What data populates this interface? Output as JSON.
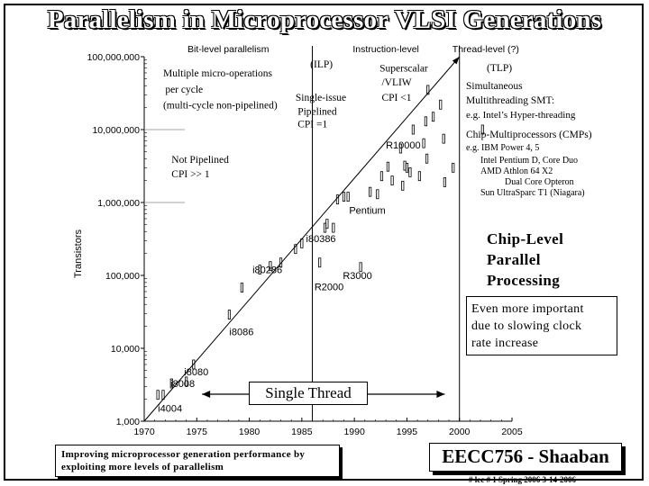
{
  "slide": {
    "title": "Parallelism in Microprocessor VLSI Generations"
  },
  "chart_data": {
    "type": "scatter",
    "title": "",
    "xlabel": "",
    "ylabel": "Transistors",
    "x_scale": "linear",
    "y_scale": "log",
    "xlim": [
      1970,
      2005
    ],
    "ylim": [
      1000,
      100000000
    ],
    "x_ticks": [
      "1970",
      "1975",
      "1980",
      "1985",
      "1990",
      "1995",
      "2000",
      "2005"
    ],
    "y_ticks": [
      "1,000",
      "10,000",
      "100,000",
      "1,000,000",
      "10,000,000",
      "100,000,000"
    ],
    "eras": [
      "Bit-level parallelism",
      "Instruction-level",
      "Thread-level (?)"
    ],
    "era_boundaries_year": [
      1986,
      2000
    ],
    "trend_line": {
      "x": [
        1970,
        2000
      ],
      "y": [
        1000,
        100000000
      ]
    },
    "points": [
      {
        "x": 1971.3,
        "y": 2300
      },
      {
        "x": 1971.8,
        "y": 2300
      },
      {
        "x": 1972.6,
        "y": 3300
      },
      {
        "x": 1974.0,
        "y": 3500
      },
      {
        "x": 1974.7,
        "y": 6000
      },
      {
        "x": 1978.1,
        "y": 29000
      },
      {
        "x": 1979.3,
        "y": 68000
      },
      {
        "x": 1981.0,
        "y": 120000
      },
      {
        "x": 1982.0,
        "y": 134000
      },
      {
        "x": 1983.0,
        "y": 150000
      },
      {
        "x": 1984.4,
        "y": 230000
      },
      {
        "x": 1985.0,
        "y": 275000
      },
      {
        "x": 1986.7,
        "y": 150000
      },
      {
        "x": 1987.2,
        "y": 450000
      },
      {
        "x": 1987.4,
        "y": 510000
      },
      {
        "x": 1988.0,
        "y": 450000
      },
      {
        "x": 1988.4,
        "y": 1100000
      },
      {
        "x": 1989.0,
        "y": 1200000
      },
      {
        "x": 1989.4,
        "y": 1200000
      },
      {
        "x": 1990.6,
        "y": 130000
      },
      {
        "x": 1991.5,
        "y": 1400000
      },
      {
        "x": 1992.2,
        "y": 1300000
      },
      {
        "x": 1992.6,
        "y": 2300000
      },
      {
        "x": 1993.2,
        "y": 3100000
      },
      {
        "x": 1993.6,
        "y": 2000000
      },
      {
        "x": 1994.4,
        "y": 5500000
      },
      {
        "x": 1994.6,
        "y": 1700000
      },
      {
        "x": 1994.8,
        "y": 3200000
      },
      {
        "x": 1995.0,
        "y": 3000000
      },
      {
        "x": 1995.3,
        "y": 2600000
      },
      {
        "x": 1995.6,
        "y": 10000000
      },
      {
        "x": 1996.2,
        "y": 2300000
      },
      {
        "x": 1996.6,
        "y": 6500000
      },
      {
        "x": 1996.8,
        "y": 13000000
      },
      {
        "x": 1996.9,
        "y": 4000000
      },
      {
        "x": 1997.5,
        "y": 15000000
      },
      {
        "x": 1997.0,
        "y": 35000000
      },
      {
        "x": 1998.2,
        "y": 22000000
      },
      {
        "x": 1998.5,
        "y": 7500000
      },
      {
        "x": 1998.6,
        "y": 1900000
      },
      {
        "x": 1999.4,
        "y": 3000000
      },
      {
        "x": 2002.2,
        "y": 10000000
      }
    ],
    "chip_labels": [
      {
        "text": "i4004",
        "x": 1971.3,
        "y": 1500
      },
      {
        "text": "i8008",
        "x": 1972.5,
        "y": 3300
      },
      {
        "text": "i8080",
        "x": 1973.8,
        "y": 4800
      },
      {
        "text": "i8086",
        "x": 1978.1,
        "y": 17000
      },
      {
        "text": "i80286",
        "x": 1980.3,
        "y": 120000
      },
      {
        "text": "R2000",
        "x": 1986.2,
        "y": 70000
      },
      {
        "text": "i80386",
        "x": 1985.4,
        "y": 320000
      },
      {
        "text": "R3000",
        "x": 1988.9,
        "y": 100000
      },
      {
        "text": "Pentium",
        "x": 1989.5,
        "y": 780000
      },
      {
        "text": "R10000",
        "x": 1993.0,
        "y": 6200000
      }
    ],
    "annotations": [
      {
        "text": "Multiple micro-operations",
        "x": 1971.8,
        "y": 60000000
      },
      {
        "text": "per cycle",
        "x": 1972.0,
        "y": 36000000
      },
      {
        "text": "(multi-cycle non-pipelined)",
        "x": 1971.8,
        "y": 22000000
      },
      {
        "text": "(ILP)",
        "x": 1985.8,
        "y": 80000000
      },
      {
        "text": "Superscalar",
        "x": 1992.4,
        "y": 70000000
      },
      {
        "text": "/VLIW",
        "x": 1992.6,
        "y": 45000000
      },
      {
        "text": "CPI <1",
        "x": 1992.6,
        "y": 28000000
      },
      {
        "text": "Single-issue",
        "x": 1984.4,
        "y": 28000000
      },
      {
        "text": "Pipelined",
        "x": 1984.6,
        "y": 18000000
      },
      {
        "text": "CPI =1",
        "x": 1984.6,
        "y": 12000000
      },
      {
        "text": "Not Pipelined",
        "x": 1972.6,
        "y": 3900000
      },
      {
        "text": "CPI >> 1",
        "x": 1972.6,
        "y": 2500000
      }
    ],
    "tlp_notes": [
      "(TLP)",
      "Simultaneous",
      "Multithreading SMT:",
      "e.g. Intel’s Hyper-threading",
      "Chip-Multiprocessors (CMPs)",
      "e.g. IBM Power 4, 5",
      "Intel Pentium D, Core Duo",
      "AMD Athlon 64 X2",
      "Dual Core Opteron",
      "Sun UltraSparc T1 (Niagara)"
    ]
  },
  "callouts": {
    "chip_level": [
      "Chip-Level",
      "Parallel",
      "Processing"
    ],
    "clock": [
      "Even more important",
      "due to slowing clock",
      "rate increase"
    ],
    "single_thread": "Single Thread"
  },
  "footer": {
    "note_line1": "Improving microprocessor generation performance by",
    "note_line2": "exploiting more levels of parallelism",
    "course": "EECC756 - Shaaban",
    "meta": "# lec # 1 Spring 2006 3-14-2006"
  }
}
